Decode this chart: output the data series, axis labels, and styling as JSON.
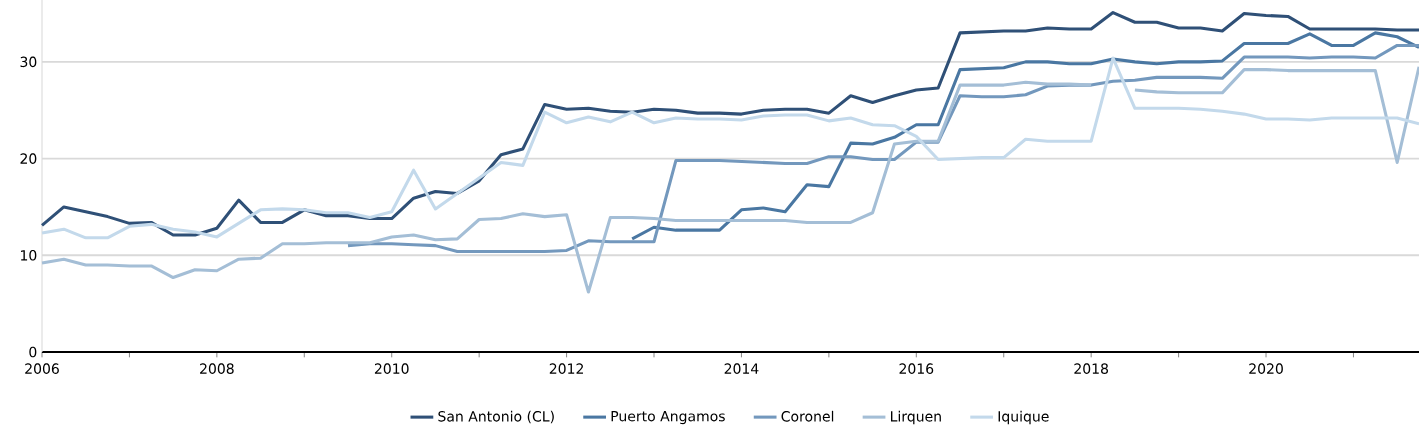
{
  "chart_data": {
    "type": "line",
    "x": [
      2006,
      2006.25,
      2006.5,
      2006.75,
      2007,
      2007.25,
      2007.5,
      2007.75,
      2008,
      2008.25,
      2008.5,
      2008.75,
      2009,
      2009.25,
      2009.5,
      2009.75,
      2010,
      2010.25,
      2010.5,
      2010.75,
      2011,
      2011.25,
      2011.5,
      2011.75,
      2012,
      2012.25,
      2012.5,
      2012.75,
      2013,
      2013.25,
      2013.5,
      2013.75,
      2014,
      2014.25,
      2014.5,
      2014.75,
      2015,
      2015.25,
      2015.5,
      2015.75,
      2016,
      2016.25,
      2016.5,
      2016.75,
      2017,
      2017.25,
      2017.5,
      2017.75,
      2018,
      2018.25,
      2018.5,
      2018.75,
      2019,
      2019.25,
      2019.5,
      2019.75,
      2020,
      2020.25,
      2020.5,
      2020.75,
      2021,
      2021.25,
      2021.5,
      2021.75
    ],
    "series": [
      {
        "name": "San Antonio (CL)",
        "color": "#2f5077",
        "values": [
          13.1,
          15.0,
          14.5,
          14.0,
          13.3,
          13.4,
          12.1,
          12.1,
          12.8,
          15.7,
          13.4,
          13.4,
          14.7,
          14.1,
          14.1,
          13.8,
          13.8,
          15.9,
          16.6,
          16.4,
          17.7,
          20.4,
          21.0,
          25.6,
          25.1,
          25.2,
          24.9,
          24.8,
          25.1,
          25.0,
          24.7,
          24.7,
          24.6,
          25.0,
          25.1,
          25.1,
          24.7,
          26.5,
          25.8,
          26.5,
          27.1,
          27.3,
          33.0,
          33.1,
          33.2,
          33.2,
          33.5,
          33.4,
          33.4,
          35.1,
          34.1,
          34.1,
          33.5,
          33.5,
          33.2,
          35.0,
          34.8,
          34.7,
          33.4,
          33.4,
          33.4,
          33.4,
          33.3,
          33.3
        ]
      },
      {
        "name": "Puerto Angamos",
        "color": "#4a77a2",
        "values": [
          null,
          null,
          null,
          null,
          null,
          null,
          null,
          null,
          null,
          null,
          null,
          null,
          null,
          null,
          null,
          null,
          null,
          null,
          null,
          null,
          null,
          null,
          null,
          null,
          null,
          null,
          null,
          11.7,
          12.9,
          12.6,
          12.6,
          12.6,
          14.7,
          14.9,
          14.5,
          17.3,
          17.1,
          21.6,
          21.5,
          22.2,
          23.5,
          23.5,
          29.2,
          29.3,
          29.4,
          30.0,
          30.0,
          29.8,
          29.8,
          30.3,
          30.0,
          29.8,
          30.0,
          30.0,
          30.1,
          31.9,
          31.9,
          31.9,
          32.9,
          31.7,
          31.7,
          33.0,
          32.6,
          31.5
        ]
      },
      {
        "name": "Coronel",
        "color": "#7398bd",
        "values": [
          null,
          null,
          null,
          null,
          null,
          null,
          null,
          null,
          null,
          null,
          null,
          null,
          null,
          null,
          11.0,
          11.2,
          11.2,
          11.1,
          11.0,
          10.4,
          10.4,
          10.4,
          10.4,
          10.4,
          10.5,
          11.5,
          11.4,
          11.4,
          11.4,
          19.8,
          19.8,
          19.8,
          19.7,
          19.6,
          19.5,
          19.5,
          20.2,
          20.2,
          19.9,
          19.9,
          21.7,
          21.7,
          26.5,
          26.4,
          26.4,
          26.6,
          27.5,
          27.6,
          27.6,
          28.0,
          28.1,
          28.4,
          28.4,
          28.4,
          28.3,
          30.5,
          30.5,
          30.5,
          30.4,
          30.5,
          30.5,
          30.4,
          31.7,
          31.7
        ]
      },
      {
        "name": "Lirquen",
        "color": "#a4bed6",
        "values": [
          9.2,
          9.6,
          9.0,
          9.0,
          8.9,
          8.9,
          7.7,
          8.5,
          8.4,
          9.6,
          9.7,
          11.2,
          11.2,
          11.3,
          11.3,
          11.3,
          11.9,
          12.1,
          11.6,
          11.7,
          13.7,
          13.8,
          14.3,
          14.0,
          14.2,
          6.2,
          13.9,
          13.9,
          13.8,
          13.6,
          13.6,
          13.6,
          13.6,
          13.6,
          13.6,
          13.4,
          13.4,
          13.4,
          14.4,
          21.5,
          21.8,
          21.8,
          27.6,
          27.6,
          27.6,
          27.9,
          27.7,
          27.7,
          27.6,
          null,
          27.1,
          26.9,
          26.8,
          26.8,
          26.8,
          29.2,
          29.2,
          29.1,
          29.1,
          29.1,
          29.1,
          29.1,
          19.6,
          29.5
        ]
      },
      {
        "name": "Iquique",
        "color": "#c3d9eb",
        "values": [
          12.3,
          12.7,
          11.8,
          11.8,
          13.0,
          13.2,
          12.7,
          12.4,
          11.9,
          13.3,
          14.7,
          14.8,
          14.7,
          14.4,
          14.4,
          13.9,
          14.5,
          18.8,
          14.8,
          16.4,
          18.0,
          19.6,
          19.3,
          24.8,
          23.7,
          24.3,
          23.8,
          24.8,
          23.7,
          24.2,
          24.1,
          24.1,
          24.0,
          24.4,
          24.5,
          24.5,
          23.9,
          24.2,
          23.5,
          23.4,
          22.3,
          19.9,
          20.0,
          20.1,
          20.1,
          22.0,
          21.8,
          21.8,
          21.8,
          30.4,
          25.2,
          25.2,
          25.2,
          25.1,
          24.9,
          24.6,
          24.1,
          24.1,
          24.0,
          24.2,
          24.2,
          24.2,
          24.2,
          23.6
        ]
      }
    ],
    "xlim": [
      2006,
      2021.75
    ],
    "xticks": [
      2006,
      {
        "value": 2007,
        "label": null
      },
      2008,
      {
        "value": 2009,
        "label": null
      },
      2010,
      {
        "value": 2011,
        "label": null
      },
      2012,
      {
        "value": 2013,
        "label": null
      },
      2014,
      {
        "value": 2015,
        "label": null
      },
      2016,
      {
        "value": 2017,
        "label": null
      },
      2018,
      {
        "value": 2019,
        "label": null
      },
      2020,
      {
        "value": 2021,
        "label": null
      }
    ],
    "ylim": [
      0,
      36.4
    ],
    "yticks": [
      0,
      10,
      20,
      30
    ],
    "grid": "y",
    "legend": "bottom"
  }
}
